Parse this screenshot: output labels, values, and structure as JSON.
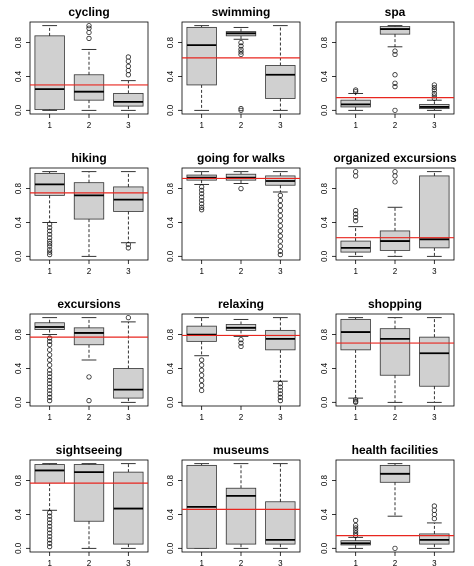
{
  "figure": {
    "background": "#ffffff"
  },
  "style": {
    "box_fill": "#d0d0d0",
    "box_stroke": "#333333",
    "reference_line_color": "#e8261f",
    "outlier_stroke": "#222222"
  },
  "chart_data": [
    {
      "type": "boxplot",
      "title": "cycling",
      "categories": [
        "1",
        "2",
        "3"
      ],
      "ylim": [
        0,
        1
      ],
      "yticks": [
        "0.0",
        "0.4",
        "0.8"
      ],
      "ytick_values": [
        0,
        0.4,
        0.8
      ],
      "reference_line": 0.3,
      "boxes": [
        {
          "min": 0.0,
          "q1": 0.01,
          "median": 0.25,
          "q3": 0.88,
          "max": 1.0,
          "outliers": []
        },
        {
          "min": 0.0,
          "q1": 0.12,
          "median": 0.22,
          "q3": 0.42,
          "max": 0.72,
          "outliers": [
            0.85,
            0.92,
            0.97,
            1.0
          ]
        },
        {
          "min": 0.0,
          "q1": 0.05,
          "median": 0.1,
          "q3": 0.2,
          "max": 0.35,
          "outliers": [
            0.42,
            0.47,
            0.52,
            0.58,
            0.63
          ]
        }
      ]
    },
    {
      "type": "boxplot",
      "title": "swimming",
      "categories": [
        "1",
        "2",
        "3"
      ],
      "ylim": [
        0,
        1
      ],
      "yticks": [
        "0.0",
        "0.4",
        "0.8"
      ],
      "ytick_values": [
        0,
        0.4,
        0.8
      ],
      "reference_line": 0.62,
      "boxes": [
        {
          "min": 0.0,
          "q1": 0.3,
          "median": 0.77,
          "q3": 0.98,
          "max": 1.0,
          "outliers": []
        },
        {
          "min": 0.84,
          "q1": 0.88,
          "median": 0.91,
          "q3": 0.93,
          "max": 0.98,
          "outliers": [
            0.8,
            0.76,
            0.72,
            0.69,
            0.66,
            0.02,
            0.0
          ]
        },
        {
          "min": 0.0,
          "q1": 0.14,
          "median": 0.42,
          "q3": 0.53,
          "max": 1.0,
          "outliers": []
        }
      ]
    },
    {
      "type": "boxplot",
      "title": "spa",
      "categories": [
        "1",
        "2",
        "3"
      ],
      "ylim": [
        0,
        1
      ],
      "yticks": [
        "0.0",
        "0.4",
        "0.8"
      ],
      "ytick_values": [
        0,
        0.4,
        0.8
      ],
      "reference_line": 0.15,
      "boxes": [
        {
          "min": 0.0,
          "q1": 0.04,
          "median": 0.07,
          "q3": 0.12,
          "max": 0.2,
          "outliers": [
            0.22,
            0.24
          ]
        },
        {
          "min": 0.75,
          "q1": 0.9,
          "median": 0.96,
          "q3": 0.99,
          "max": 1.0,
          "outliers": [
            0.7,
            0.66,
            0.42,
            0.32,
            0.28,
            0.0
          ]
        },
        {
          "min": 0.0,
          "q1": 0.02,
          "median": 0.04,
          "q3": 0.07,
          "max": 0.12,
          "outliers": [
            0.14,
            0.17,
            0.2,
            0.24,
            0.27,
            0.3
          ]
        }
      ]
    },
    {
      "type": "boxplot",
      "title": "hiking",
      "categories": [
        "1",
        "2",
        "3"
      ],
      "ylim": [
        0,
        1
      ],
      "yticks": [
        "0.0",
        "0.4",
        "0.8"
      ],
      "ytick_values": [
        0,
        0.4,
        0.8
      ],
      "reference_line": 0.75,
      "boxes": [
        {
          "min": 0.4,
          "q1": 0.72,
          "median": 0.85,
          "q3": 0.98,
          "max": 1.0,
          "outliers": [
            0.38,
            0.34,
            0.3,
            0.26,
            0.22,
            0.18,
            0.15,
            0.12,
            0.08,
            0.05,
            0.02
          ]
        },
        {
          "min": 0.0,
          "q1": 0.44,
          "median": 0.72,
          "q3": 0.87,
          "max": 1.0,
          "outliers": []
        },
        {
          "min": 0.16,
          "q1": 0.53,
          "median": 0.67,
          "q3": 0.82,
          "max": 1.0,
          "outliers": [
            0.14,
            0.1
          ]
        }
      ]
    },
    {
      "type": "boxplot",
      "title": "going for walks",
      "categories": [
        "1",
        "2",
        "3"
      ],
      "ylim": [
        0,
        1
      ],
      "yticks": [
        "0.0",
        "0.4",
        "0.8"
      ],
      "ytick_values": [
        0,
        0.4,
        0.8
      ],
      "reference_line": 0.92,
      "boxes": [
        {
          "min": 0.85,
          "q1": 0.9,
          "median": 0.93,
          "q3": 0.96,
          "max": 1.0,
          "outliers": [
            0.82,
            0.78,
            0.74,
            0.7,
            0.66,
            0.62,
            0.58,
            0.55
          ]
        },
        {
          "min": 0.86,
          "q1": 0.9,
          "median": 0.93,
          "q3": 0.97,
          "max": 1.0,
          "outliers": [
            0.8
          ]
        },
        {
          "min": 0.76,
          "q1": 0.84,
          "median": 0.89,
          "q3": 0.95,
          "max": 1.0,
          "outliers": [
            0.72,
            0.66,
            0.6,
            0.54,
            0.48,
            0.42,
            0.36,
            0.3,
            0.24,
            0.18,
            0.12,
            0.06,
            0.02
          ]
        }
      ]
    },
    {
      "type": "boxplot",
      "title": "organized excursions",
      "categories": [
        "1",
        "2",
        "3"
      ],
      "ylim": [
        0,
        1
      ],
      "yticks": [
        "0.0",
        "0.4",
        "0.8"
      ],
      "ytick_values": [
        0,
        0.4,
        0.8
      ],
      "reference_line": 0.22,
      "boxes": [
        {
          "min": 0.0,
          "q1": 0.05,
          "median": 0.1,
          "q3": 0.18,
          "max": 0.35,
          "outliers": [
            0.42,
            0.46,
            0.5,
            0.54,
            0.95,
            1.0
          ]
        },
        {
          "min": 0.0,
          "q1": 0.07,
          "median": 0.18,
          "q3": 0.3,
          "max": 0.58,
          "outliers": [
            0.88,
            0.95,
            1.0
          ]
        },
        {
          "min": 0.0,
          "q1": 0.1,
          "median": 0.2,
          "q3": 0.95,
          "max": 1.0,
          "outliers": []
        }
      ]
    },
    {
      "type": "boxplot",
      "title": "excursions",
      "categories": [
        "1",
        "2",
        "3"
      ],
      "ylim": [
        0,
        1
      ],
      "yticks": [
        "0.0",
        "0.4",
        "0.8"
      ],
      "ytick_values": [
        0,
        0.4,
        0.8
      ],
      "reference_line": 0.77,
      "boxes": [
        {
          "min": 0.8,
          "q1": 0.86,
          "median": 0.89,
          "q3": 0.94,
          "max": 1.0,
          "outliers": [
            0.76,
            0.72,
            0.68,
            0.62,
            0.56,
            0.5,
            0.44,
            0.38,
            0.34,
            0.3,
            0.26,
            0.22,
            0.18,
            0.14,
            0.1,
            0.06,
            0.02
          ]
        },
        {
          "min": 0.5,
          "q1": 0.68,
          "median": 0.82,
          "q3": 0.88,
          "max": 1.0,
          "outliers": [
            0.3,
            0.02
          ]
        },
        {
          "min": 0.0,
          "q1": 0.05,
          "median": 0.15,
          "q3": 0.4,
          "max": 0.95,
          "outliers": [
            1.0
          ]
        }
      ]
    },
    {
      "type": "boxplot",
      "title": "relaxing",
      "categories": [
        "1",
        "2",
        "3"
      ],
      "ylim": [
        0,
        1
      ],
      "yticks": [
        "0.0",
        "0.4",
        "0.8"
      ],
      "ytick_values": [
        0,
        0.4,
        0.8
      ],
      "reference_line": 0.79,
      "boxes": [
        {
          "min": 0.55,
          "q1": 0.72,
          "median": 0.8,
          "q3": 0.9,
          "max": 1.0,
          "outliers": [
            0.5,
            0.44,
            0.38,
            0.32,
            0.26,
            0.2,
            0.14
          ]
        },
        {
          "min": 0.78,
          "q1": 0.85,
          "median": 0.88,
          "q3": 0.92,
          "max": 0.98,
          "outliers": [
            0.74,
            0.7,
            0.66
          ]
        },
        {
          "min": 0.25,
          "q1": 0.62,
          "median": 0.75,
          "q3": 0.85,
          "max": 1.0,
          "outliers": [
            0.22,
            0.18,
            0.14,
            0.1,
            0.06,
            0.02
          ]
        }
      ]
    },
    {
      "type": "boxplot",
      "title": "shopping",
      "categories": [
        "1",
        "2",
        "3"
      ],
      "ylim": [
        0,
        1
      ],
      "yticks": [
        "0.0",
        "0.4",
        "0.8"
      ],
      "ytick_values": [
        0,
        0.4,
        0.8
      ],
      "reference_line": 0.7,
      "boxes": [
        {
          "min": 0.05,
          "q1": 0.62,
          "median": 0.83,
          "q3": 0.98,
          "max": 1.0,
          "outliers": [
            0.03,
            0.01,
            0.0
          ]
        },
        {
          "min": 0.0,
          "q1": 0.32,
          "median": 0.75,
          "q3": 0.87,
          "max": 1.0,
          "outliers": []
        },
        {
          "min": 0.0,
          "q1": 0.19,
          "median": 0.58,
          "q3": 0.77,
          "max": 1.0,
          "outliers": []
        }
      ]
    },
    {
      "type": "boxplot",
      "title": "sightseeing",
      "categories": [
        "1",
        "2",
        "3"
      ],
      "ylim": [
        0,
        1
      ],
      "yticks": [
        "0.0",
        "0.4",
        "0.8"
      ],
      "ytick_values": [
        0,
        0.4,
        0.8
      ],
      "reference_line": 0.77,
      "boxes": [
        {
          "min": 0.45,
          "q1": 0.77,
          "median": 0.92,
          "q3": 0.99,
          "max": 1.0,
          "outliers": [
            0.42,
            0.38,
            0.34,
            0.3,
            0.26,
            0.22,
            0.18,
            0.14,
            0.1,
            0.06,
            0.02
          ]
        },
        {
          "min": 0.0,
          "q1": 0.32,
          "median": 0.9,
          "q3": 0.99,
          "max": 1.0,
          "outliers": []
        },
        {
          "min": 0.0,
          "q1": 0.05,
          "median": 0.47,
          "q3": 0.9,
          "max": 1.0,
          "outliers": []
        }
      ]
    },
    {
      "type": "boxplot",
      "title": "museums",
      "categories": [
        "1",
        "2",
        "3"
      ],
      "ylim": [
        0,
        1
      ],
      "yticks": [
        "0.0",
        "0.4",
        "0.8"
      ],
      "ytick_values": [
        0,
        0.4,
        0.8
      ],
      "reference_line": 0.46,
      "boxes": [
        {
          "min": 0.0,
          "q1": 0.0,
          "median": 0.49,
          "q3": 0.98,
          "max": 1.0,
          "outliers": []
        },
        {
          "min": 0.0,
          "q1": 0.05,
          "median": 0.62,
          "q3": 0.71,
          "max": 1.0,
          "outliers": []
        },
        {
          "min": 0.0,
          "q1": 0.05,
          "median": 0.1,
          "q3": 0.55,
          "max": 1.0,
          "outliers": []
        }
      ]
    },
    {
      "type": "boxplot",
      "title": "health facilities",
      "categories": [
        "1",
        "2",
        "3"
      ],
      "ylim": [
        0,
        1
      ],
      "yticks": [
        "0.0",
        "0.4",
        "0.8"
      ],
      "ytick_values": [
        0,
        0.4,
        0.8
      ],
      "reference_line": 0.15,
      "boxes": [
        {
          "min": 0.0,
          "q1": 0.04,
          "median": 0.06,
          "q3": 0.09,
          "max": 0.13,
          "outliers": [
            0.15,
            0.18,
            0.21,
            0.24,
            0.27,
            0.33
          ]
        },
        {
          "min": 0.38,
          "q1": 0.78,
          "median": 0.88,
          "q3": 0.98,
          "max": 1.0,
          "outliers": [
            0.0
          ]
        },
        {
          "min": 0.0,
          "q1": 0.05,
          "median": 0.1,
          "q3": 0.17,
          "max": 0.3,
          "outliers": [
            0.35,
            0.4,
            0.45,
            0.5
          ]
        }
      ]
    }
  ]
}
